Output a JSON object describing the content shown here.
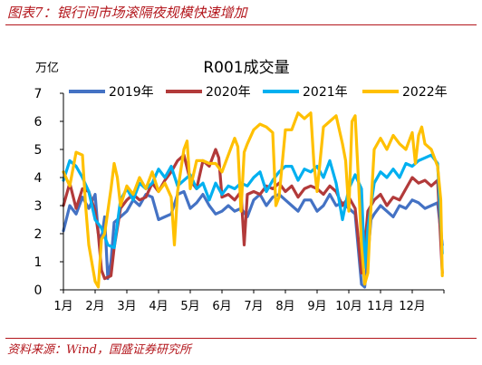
{
  "figure": {
    "title": "图表7：银行间市场滚隔夜规模快速增加",
    "source": "资料来源：Wind，国盛证券研究所"
  },
  "chart_data": {
    "type": "line",
    "title": "R001成交量",
    "ylabel": "万亿",
    "xlabel": "",
    "ylim": [
      0,
      7
    ],
    "yticks": [
      "0",
      "1",
      "2",
      "3",
      "4",
      "5",
      "6",
      "7"
    ],
    "xlim": [
      0,
      12
    ],
    "x_tick_labels": [
      "1月",
      "2月",
      "3月",
      "4月",
      "5月",
      "6月",
      "7月",
      "8月",
      "9月",
      "10月",
      "11月",
      "12月"
    ],
    "grid": false,
    "legend_position": "top",
    "x_unit": "month (position within year)",
    "series": [
      {
        "name": "2019年",
        "color": "#4472c4",
        "points": [
          [
            0.0,
            2.1
          ],
          [
            0.2,
            3.0
          ],
          [
            0.4,
            2.7
          ],
          [
            0.6,
            3.3
          ],
          [
            0.8,
            2.9
          ],
          [
            1.0,
            3.4
          ],
          [
            1.1,
            2.0
          ],
          [
            1.2,
            1.8
          ],
          [
            1.3,
            2.6
          ],
          [
            1.4,
            0.4
          ],
          [
            1.5,
            1.0
          ],
          [
            1.6,
            2.4
          ],
          [
            1.8,
            2.6
          ],
          [
            2.0,
            2.8
          ],
          [
            2.2,
            3.2
          ],
          [
            2.4,
            3.0
          ],
          [
            2.6,
            3.4
          ],
          [
            2.8,
            3.3
          ],
          [
            3.0,
            2.5
          ],
          [
            3.2,
            2.6
          ],
          [
            3.4,
            2.7
          ],
          [
            3.6,
            3.4
          ],
          [
            3.8,
            3.5
          ],
          [
            4.0,
            2.9
          ],
          [
            4.2,
            3.1
          ],
          [
            4.4,
            3.4
          ],
          [
            4.6,
            3.0
          ],
          [
            4.8,
            2.7
          ],
          [
            5.0,
            2.8
          ],
          [
            5.2,
            3.0
          ],
          [
            5.4,
            2.8
          ],
          [
            5.6,
            2.9
          ],
          [
            5.8,
            2.6
          ],
          [
            6.0,
            3.2
          ],
          [
            6.2,
            3.4
          ],
          [
            6.4,
            3.0
          ],
          [
            6.6,
            3.3
          ],
          [
            6.8,
            3.4
          ],
          [
            7.0,
            3.2
          ],
          [
            7.2,
            3.0
          ],
          [
            7.4,
            2.8
          ],
          [
            7.6,
            3.2
          ],
          [
            7.8,
            3.2
          ],
          [
            8.0,
            2.8
          ],
          [
            8.2,
            3.0
          ],
          [
            8.4,
            3.4
          ],
          [
            8.6,
            3.0
          ],
          [
            8.8,
            3.1
          ],
          [
            9.0,
            2.9
          ],
          [
            9.2,
            2.7
          ],
          [
            9.4,
            0.2
          ],
          [
            9.5,
            0.1
          ],
          [
            9.6,
            1.2
          ],
          [
            9.7,
            2.5
          ],
          [
            9.8,
            2.7
          ],
          [
            10.0,
            3.0
          ],
          [
            10.2,
            2.8
          ],
          [
            10.4,
            2.6
          ],
          [
            10.6,
            3.0
          ],
          [
            10.8,
            2.9
          ],
          [
            11.0,
            3.2
          ],
          [
            11.2,
            3.1
          ],
          [
            11.4,
            2.9
          ],
          [
            11.6,
            3.0
          ],
          [
            11.8,
            3.1
          ],
          [
            11.95,
            1.6
          ]
        ]
      },
      {
        "name": "2020年",
        "color": "#b23a3a",
        "points": [
          [
            0.0,
            3.0
          ],
          [
            0.2,
            3.8
          ],
          [
            0.4,
            2.9
          ],
          [
            0.6,
            3.6
          ],
          [
            0.8,
            3.5
          ],
          [
            1.0,
            2.8
          ],
          [
            1.1,
            2.0
          ],
          [
            1.2,
            0.7
          ],
          [
            1.3,
            0.4
          ],
          [
            1.5,
            0.5
          ],
          [
            1.6,
            1.5
          ],
          [
            1.8,
            2.9
          ],
          [
            2.0,
            3.2
          ],
          [
            2.2,
            3.4
          ],
          [
            2.4,
            3.2
          ],
          [
            2.6,
            3.3
          ],
          [
            2.8,
            3.8
          ],
          [
            3.0,
            3.5
          ],
          [
            3.2,
            3.9
          ],
          [
            3.4,
            4.2
          ],
          [
            3.6,
            4.6
          ],
          [
            3.8,
            4.8
          ],
          [
            4.0,
            3.9
          ],
          [
            4.2,
            3.6
          ],
          [
            4.4,
            4.6
          ],
          [
            4.6,
            4.4
          ],
          [
            4.8,
            5.0
          ],
          [
            4.9,
            4.7
          ],
          [
            5.0,
            3.3
          ],
          [
            5.2,
            3.4
          ],
          [
            5.4,
            3.2
          ],
          [
            5.6,
            3.5
          ],
          [
            5.7,
            1.6
          ],
          [
            5.8,
            3.4
          ],
          [
            6.0,
            3.5
          ],
          [
            6.2,
            3.4
          ],
          [
            6.4,
            3.7
          ],
          [
            6.6,
            3.6
          ],
          [
            6.8,
            3.8
          ],
          [
            7.0,
            3.5
          ],
          [
            7.2,
            3.7
          ],
          [
            7.4,
            3.3
          ],
          [
            7.6,
            3.6
          ],
          [
            7.8,
            3.7
          ],
          [
            8.0,
            3.6
          ],
          [
            8.2,
            3.4
          ],
          [
            8.4,
            3.7
          ],
          [
            8.6,
            3.5
          ],
          [
            8.8,
            3.0
          ],
          [
            9.0,
            3.3
          ],
          [
            9.2,
            2.9
          ],
          [
            9.3,
            1.8
          ],
          [
            9.4,
            0.6
          ],
          [
            9.5,
            1.5
          ],
          [
            9.6,
            2.8
          ],
          [
            9.8,
            3.2
          ],
          [
            10.0,
            3.4
          ],
          [
            10.2,
            3.0
          ],
          [
            10.4,
            3.3
          ],
          [
            10.6,
            3.2
          ],
          [
            10.8,
            3.6
          ],
          [
            11.0,
            4.0
          ],
          [
            11.2,
            3.8
          ],
          [
            11.4,
            3.9
          ],
          [
            11.6,
            3.7
          ],
          [
            11.8,
            3.9
          ],
          [
            11.95,
            0.6
          ]
        ]
      },
      {
        "name": "2021年",
        "color": "#00b0f0",
        "points": [
          [
            0.0,
            3.9
          ],
          [
            0.2,
            4.6
          ],
          [
            0.4,
            4.4
          ],
          [
            0.6,
            4.0
          ],
          [
            0.8,
            3.5
          ],
          [
            1.0,
            2.5
          ],
          [
            1.2,
            2.2
          ],
          [
            1.4,
            1.6
          ],
          [
            1.6,
            1.5
          ],
          [
            1.8,
            3.2
          ],
          [
            2.0,
            3.6
          ],
          [
            2.2,
            3.2
          ],
          [
            2.4,
            3.8
          ],
          [
            2.6,
            3.6
          ],
          [
            2.8,
            3.8
          ],
          [
            3.0,
            4.3
          ],
          [
            3.2,
            4.0
          ],
          [
            3.4,
            4.4
          ],
          [
            3.6,
            3.7
          ],
          [
            3.8,
            3.9
          ],
          [
            4.0,
            4.1
          ],
          [
            4.2,
            3.6
          ],
          [
            4.4,
            3.8
          ],
          [
            4.6,
            3.2
          ],
          [
            4.8,
            3.8
          ],
          [
            5.0,
            3.4
          ],
          [
            5.2,
            3.7
          ],
          [
            5.4,
            3.6
          ],
          [
            5.6,
            3.8
          ],
          [
            5.8,
            3.7
          ],
          [
            6.0,
            4.0
          ],
          [
            6.2,
            4.2
          ],
          [
            6.4,
            3.5
          ],
          [
            6.6,
            3.9
          ],
          [
            6.8,
            4.2
          ],
          [
            7.0,
            4.4
          ],
          [
            7.2,
            4.4
          ],
          [
            7.4,
            3.9
          ],
          [
            7.6,
            4.3
          ],
          [
            7.8,
            4.2
          ],
          [
            8.0,
            4.4
          ],
          [
            8.2,
            4.0
          ],
          [
            8.4,
            4.6
          ],
          [
            8.6,
            3.8
          ],
          [
            8.8,
            2.5
          ],
          [
            9.0,
            3.6
          ],
          [
            9.2,
            4.1
          ],
          [
            9.4,
            3.6
          ],
          [
            9.5,
            0.8
          ],
          [
            9.6,
            2.2
          ],
          [
            9.8,
            3.8
          ],
          [
            10.0,
            4.2
          ],
          [
            10.2,
            4.0
          ],
          [
            10.4,
            4.3
          ],
          [
            10.6,
            4.0
          ],
          [
            10.8,
            4.5
          ],
          [
            11.0,
            4.4
          ],
          [
            11.2,
            4.6
          ],
          [
            11.4,
            4.7
          ],
          [
            11.6,
            4.8
          ],
          [
            11.8,
            4.5
          ],
          [
            11.95,
            1.3
          ]
        ]
      },
      {
        "name": "2022年",
        "color": "#ffc000",
        "points": [
          [
            0.0,
            4.2
          ],
          [
            0.2,
            3.7
          ],
          [
            0.4,
            4.9
          ],
          [
            0.6,
            4.8
          ],
          [
            0.7,
            3.0
          ],
          [
            0.8,
            1.6
          ],
          [
            1.0,
            0.3
          ],
          [
            1.1,
            0.1
          ],
          [
            1.2,
            1.8
          ],
          [
            1.3,
            2.0
          ],
          [
            1.5,
            3.6
          ],
          [
            1.6,
            4.5
          ],
          [
            1.7,
            4.0
          ],
          [
            1.8,
            3.0
          ],
          [
            2.0,
            3.7
          ],
          [
            2.2,
            3.4
          ],
          [
            2.4,
            4.0
          ],
          [
            2.6,
            3.6
          ],
          [
            2.8,
            4.2
          ],
          [
            3.0,
            3.5
          ],
          [
            3.2,
            3.8
          ],
          [
            3.4,
            3.3
          ],
          [
            3.5,
            1.6
          ],
          [
            3.6,
            3.5
          ],
          [
            3.8,
            5.0
          ],
          [
            3.9,
            5.3
          ],
          [
            4.0,
            3.6
          ],
          [
            4.2,
            4.6
          ],
          [
            4.4,
            4.6
          ],
          [
            4.6,
            4.5
          ],
          [
            4.8,
            4.5
          ],
          [
            5.0,
            4.2
          ],
          [
            5.2,
            4.8
          ],
          [
            5.4,
            5.4
          ],
          [
            5.5,
            5.1
          ],
          [
            5.6,
            2.8
          ],
          [
            5.7,
            4.9
          ],
          [
            5.8,
            5.2
          ],
          [
            6.0,
            5.7
          ],
          [
            6.2,
            5.9
          ],
          [
            6.4,
            5.8
          ],
          [
            6.6,
            5.6
          ],
          [
            6.7,
            3.0
          ],
          [
            6.8,
            3.3
          ],
          [
            7.0,
            5.7
          ],
          [
            7.2,
            5.7
          ],
          [
            7.4,
            6.3
          ],
          [
            7.6,
            6.1
          ],
          [
            7.8,
            6.3
          ],
          [
            7.9,
            4.5
          ],
          [
            8.0,
            3.5
          ],
          [
            8.2,
            5.8
          ],
          [
            8.4,
            6.0
          ],
          [
            8.6,
            6.2
          ],
          [
            8.8,
            5.2
          ],
          [
            8.9,
            4.6
          ],
          [
            9.0,
            2.8
          ],
          [
            9.1,
            6.0
          ],
          [
            9.2,
            6.2
          ],
          [
            9.3,
            4.0
          ],
          [
            9.4,
            1.6
          ],
          [
            9.5,
            0.2
          ],
          [
            9.6,
            0.6
          ],
          [
            9.7,
            3.0
          ],
          [
            9.8,
            5.0
          ],
          [
            10.0,
            5.4
          ],
          [
            10.2,
            5.0
          ],
          [
            10.4,
            5.5
          ],
          [
            10.6,
            5.2
          ],
          [
            10.8,
            5.0
          ],
          [
            11.0,
            5.6
          ],
          [
            11.1,
            4.5
          ],
          [
            11.2,
            5.5
          ],
          [
            11.3,
            5.8
          ],
          [
            11.4,
            5.2
          ],
          [
            11.6,
            5.0
          ],
          [
            11.8,
            4.4
          ],
          [
            11.9,
            3.2
          ],
          [
            11.95,
            0.5
          ]
        ]
      }
    ]
  }
}
